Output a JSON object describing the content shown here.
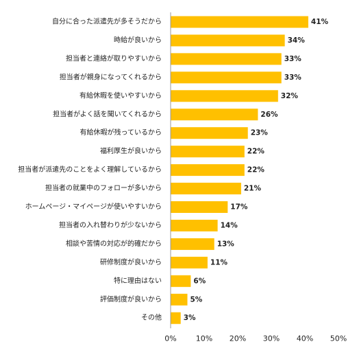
{
  "chart_data": {
    "type": "bar",
    "orientation": "horizontal",
    "categories": [
      "自分に合った派遣先が多そうだから",
      "時給が良いから",
      "担当者と連絡が取りやすいから",
      "担当者が親身になってくれるから",
      "有給休暇を使いやすいから",
      "担当者がよく話を聞いてくれるから",
      "有給休暇が残っているから",
      "福利厚生が良いから",
      "担当者が派遣先のことをよく理解しているから",
      "担当者の就業中のフォローが多いから",
      "ホームページ・マイページが使いやすいから",
      "担当者の入れ替わりが少ないから",
      "相談や苦情の対応が的確だから",
      "研修制度が良いから",
      "特に理由はない",
      "評価制度が良いから",
      "その他"
    ],
    "values": [
      41,
      34,
      33,
      33,
      32,
      26,
      23,
      22,
      22,
      21,
      17,
      14,
      13,
      11,
      6,
      5,
      3
    ],
    "value_suffix": "%",
    "xlim": [
      0,
      50
    ],
    "xticks": [
      0,
      10,
      20,
      30,
      40,
      50
    ],
    "tick_labels": [
      "0%",
      "10%",
      "20%",
      "30%",
      "40%",
      "50%"
    ],
    "bar_color": "#FFC000",
    "axis_color": "#999999",
    "grid": false,
    "legend": "none",
    "title": "",
    "xlabel": "",
    "ylabel": ""
  }
}
